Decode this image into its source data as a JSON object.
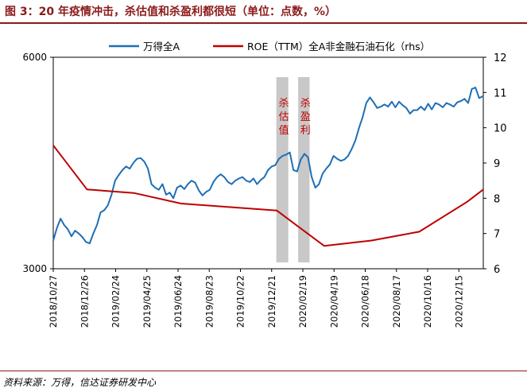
{
  "header": {
    "title": "图 3：20 年疫情冲击，杀估值和杀盈利都很短（单位：点数，%）"
  },
  "footer": {
    "source": "资料来源：万得，信达证券研发中心"
  },
  "colors": {
    "title": "#8b1a1a",
    "index_series": "#1f6fb5",
    "roe_series": "#c00000",
    "shade": "#c8c8c8",
    "annotation": "#c00000"
  },
  "chart_data": {
    "type": "line",
    "title": "",
    "x_start": "2018-10-27",
    "x_end": "2021-01-31",
    "x_tick_labels": [
      "2018/10/27",
      "2018/12/26",
      "2019/02/24",
      "2019/04/25",
      "2019/06/24",
      "2019/08/23",
      "2019/10/22",
      "2019/12/21",
      "2020/02/19",
      "2020/04/19",
      "2020/06/18",
      "2020/08/17",
      "2020/10/16",
      "2020/12/15"
    ],
    "x_tick_dates": [
      "2018-10-27",
      "2018-12-26",
      "2019-02-24",
      "2019-04-25",
      "2019-06-24",
      "2019-08-23",
      "2019-10-22",
      "2019-12-21",
      "2020-02-19",
      "2020-04-19",
      "2020-06-18",
      "2020-08-17",
      "2020-10-16",
      "2020-12-15"
    ],
    "y_left": {
      "lim": [
        3000,
        6000
      ],
      "ticks": [
        3000,
        6000
      ]
    },
    "y_right": {
      "lim": [
        6,
        12
      ],
      "ticks": [
        6,
        7,
        8,
        9,
        10,
        11,
        12
      ]
    },
    "legend_position": "top",
    "series": [
      {
        "name": "万得全A",
        "axis": "left",
        "x": [
          "2018-10-27",
          "2018-11-03",
          "2018-11-10",
          "2018-11-17",
          "2018-11-24",
          "2018-12-01",
          "2018-12-08",
          "2018-12-15",
          "2018-12-22",
          "2018-12-29",
          "2019-01-05",
          "2019-01-12",
          "2019-01-19",
          "2019-01-26",
          "2019-02-02",
          "2019-02-09",
          "2019-02-16",
          "2019-02-23",
          "2019-03-02",
          "2019-03-09",
          "2019-03-16",
          "2019-03-23",
          "2019-03-30",
          "2019-04-06",
          "2019-04-13",
          "2019-04-20",
          "2019-04-27",
          "2019-05-04",
          "2019-05-11",
          "2019-05-18",
          "2019-05-25",
          "2019-06-01",
          "2019-06-08",
          "2019-06-15",
          "2019-06-22",
          "2019-06-29",
          "2019-07-06",
          "2019-07-13",
          "2019-07-20",
          "2019-07-27",
          "2019-08-03",
          "2019-08-10",
          "2019-08-17",
          "2019-08-24",
          "2019-08-31",
          "2019-09-07",
          "2019-09-14",
          "2019-09-21",
          "2019-09-28",
          "2019-10-05",
          "2019-10-12",
          "2019-10-19",
          "2019-10-26",
          "2019-11-02",
          "2019-11-09",
          "2019-11-16",
          "2019-11-23",
          "2019-11-30",
          "2019-12-07",
          "2019-12-14",
          "2019-12-21",
          "2019-12-28",
          "2020-01-04",
          "2020-01-11",
          "2020-01-18",
          "2020-01-25",
          "2020-02-01",
          "2020-02-08",
          "2020-02-15",
          "2020-02-22",
          "2020-02-29",
          "2020-03-07",
          "2020-03-14",
          "2020-03-21",
          "2020-03-28",
          "2020-04-04",
          "2020-04-11",
          "2020-04-18",
          "2020-04-25",
          "2020-05-02",
          "2020-05-09",
          "2020-05-16",
          "2020-05-23",
          "2020-05-30",
          "2020-06-06",
          "2020-06-13",
          "2020-06-20",
          "2020-06-27",
          "2020-07-04",
          "2020-07-11",
          "2020-07-18",
          "2020-07-25",
          "2020-08-01",
          "2020-08-08",
          "2020-08-15",
          "2020-08-22",
          "2020-08-29",
          "2020-09-05",
          "2020-09-12",
          "2020-09-19",
          "2020-09-26",
          "2020-10-03",
          "2020-10-10",
          "2020-10-17",
          "2020-10-24",
          "2020-10-31",
          "2020-11-07",
          "2020-11-14",
          "2020-11-21",
          "2020-11-28",
          "2020-12-05",
          "2020-12-12",
          "2020-12-19",
          "2020-12-26",
          "2021-01-02",
          "2021-01-09",
          "2021-01-16",
          "2021-01-23",
          "2021-01-31"
        ],
        "values": [
          3400,
          3580,
          3710,
          3620,
          3560,
          3460,
          3540,
          3500,
          3450,
          3380,
          3360,
          3500,
          3620,
          3800,
          3830,
          3900,
          4050,
          4250,
          4330,
          4400,
          4450,
          4420,
          4500,
          4560,
          4570,
          4520,
          4420,
          4200,
          4150,
          4120,
          4200,
          4050,
          4080,
          4000,
          4150,
          4180,
          4130,
          4200,
          4250,
          4220,
          4110,
          4040,
          4090,
          4120,
          4230,
          4300,
          4340,
          4300,
          4230,
          4200,
          4250,
          4280,
          4300,
          4250,
          4230,
          4280,
          4200,
          4260,
          4300,
          4400,
          4450,
          4470,
          4560,
          4600,
          4620,
          4650,
          4400,
          4380,
          4550,
          4630,
          4580,
          4300,
          4150,
          4200,
          4350,
          4420,
          4480,
          4600,
          4560,
          4530,
          4550,
          4600,
          4700,
          4820,
          5000,
          5150,
          5350,
          5430,
          5360,
          5280,
          5300,
          5330,
          5300,
          5370,
          5290,
          5370,
          5320,
          5280,
          5200,
          5250,
          5250,
          5300,
          5250,
          5340,
          5260,
          5350,
          5330,
          5290,
          5350,
          5330,
          5300,
          5360,
          5380,
          5410,
          5350,
          5550,
          5570,
          5420,
          5450
        ]
      },
      {
        "name": "ROE（TTM）全A非金融石油石化（rhs）",
        "axis": "right",
        "x": [
          "2018-10-27",
          "2018-12-31",
          "2019-03-31",
          "2019-06-30",
          "2019-09-30",
          "2019-12-31",
          "2020-03-31",
          "2020-06-30",
          "2020-09-30",
          "2020-12-31",
          "2021-01-31"
        ],
        "values": [
          9.5,
          8.25,
          8.15,
          7.85,
          7.75,
          7.65,
          6.65,
          6.8,
          7.05,
          7.9,
          8.25
        ]
      }
    ],
    "annotations": [
      {
        "label": "杀估值",
        "x_start": "2019-12-30",
        "x_end": "2020-01-22"
      },
      {
        "label": "杀盈利",
        "x_start": "2020-02-10",
        "x_end": "2020-03-03"
      }
    ]
  }
}
